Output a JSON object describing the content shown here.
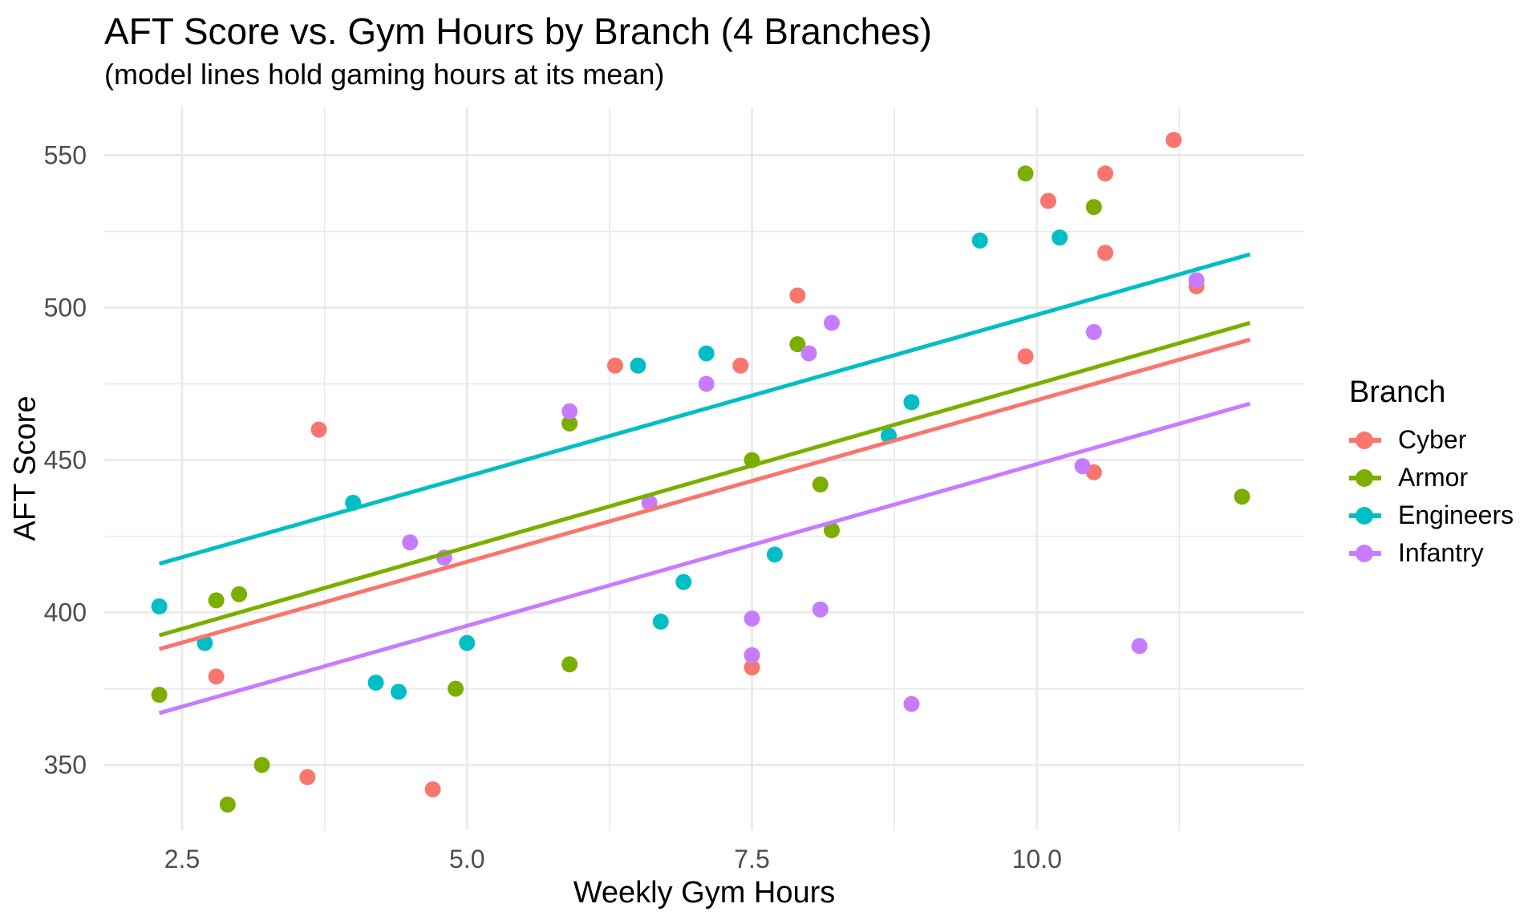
{
  "chart_data": {
    "type": "scatter",
    "title": "AFT Score vs. Gym Hours by Branch (4 Branches)",
    "subtitle": "(model lines hold gaming hours at its mean)",
    "xlabel": "Weekly Gym Hours",
    "ylabel": "AFT Score",
    "x_axis": {
      "ticks": [
        2.5,
        5.0,
        7.5,
        10.0
      ],
      "tick_labels": [
        "2.5",
        "5.0",
        "7.5",
        "10.0"
      ],
      "minor_ticks": [
        3.75,
        6.25,
        8.75,
        11.25
      ],
      "range": [
        1.82,
        12.35
      ]
    },
    "y_axis": {
      "ticks": [
        350,
        400,
        450,
        500,
        550
      ],
      "tick_labels": [
        "350",
        "400",
        "450",
        "500",
        "550"
      ],
      "minor_ticks": [
        375,
        425,
        475,
        525
      ],
      "range": [
        328,
        566
      ]
    },
    "grid": "on",
    "legend": {
      "title": "Branch",
      "position": "right"
    },
    "styles": {
      "grid_color": "#EBEBEB",
      "tick_text_color": "#4D4D4D",
      "text_color": "#000000",
      "background": "#FFFFFF"
    },
    "series": [
      {
        "name": "Cyber",
        "color": "#F8766D",
        "points": [
          [
            2.8,
            379
          ],
          [
            3.6,
            346
          ],
          [
            3.7,
            460
          ],
          [
            4.7,
            342
          ],
          [
            6.3,
            481
          ],
          [
            7.4,
            481
          ],
          [
            7.5,
            382
          ],
          [
            7.9,
            504
          ],
          [
            9.9,
            484
          ],
          [
            10.1,
            535
          ],
          [
            10.5,
            446
          ],
          [
            10.6,
            518
          ],
          [
            10.6,
            544
          ],
          [
            11.2,
            555
          ],
          [
            11.4,
            507
          ]
        ],
        "trend": {
          "x": [
            2.3,
            11.87
          ],
          "y": [
            388,
            489.5
          ]
        }
      },
      {
        "name": "Armor",
        "color": "#7CAE00",
        "points": [
          [
            2.3,
            373
          ],
          [
            2.8,
            404
          ],
          [
            2.9,
            337
          ],
          [
            3.0,
            406
          ],
          [
            3.2,
            350
          ],
          [
            4.9,
            375
          ],
          [
            5.9,
            383
          ],
          [
            5.9,
            462
          ],
          [
            7.5,
            450
          ],
          [
            7.9,
            488
          ],
          [
            8.1,
            442
          ],
          [
            8.2,
            427
          ],
          [
            9.9,
            544
          ],
          [
            10.5,
            533
          ],
          [
            11.8,
            438
          ]
        ],
        "trend": {
          "x": [
            2.3,
            11.87
          ],
          "y": [
            392.5,
            495
          ]
        }
      },
      {
        "name": "Engineers",
        "color": "#00BFC4",
        "points": [
          [
            2.3,
            402
          ],
          [
            2.7,
            390
          ],
          [
            4.0,
            436
          ],
          [
            4.2,
            377
          ],
          [
            4.4,
            374
          ],
          [
            5.0,
            390
          ],
          [
            6.5,
            481
          ],
          [
            6.7,
            397
          ],
          [
            6.9,
            410
          ],
          [
            7.1,
            485
          ],
          [
            7.7,
            419
          ],
          [
            8.7,
            458
          ],
          [
            8.9,
            469
          ],
          [
            9.5,
            522
          ],
          [
            10.2,
            523
          ]
        ],
        "trend": {
          "x": [
            2.3,
            11.87
          ],
          "y": [
            416,
            517.5
          ]
        }
      },
      {
        "name": "Infantry",
        "color": "#C77CFF",
        "points": [
          [
            4.5,
            423
          ],
          [
            4.8,
            418
          ],
          [
            5.9,
            466
          ],
          [
            6.6,
            436
          ],
          [
            7.1,
            475
          ],
          [
            7.5,
            386
          ],
          [
            7.5,
            398
          ],
          [
            8.0,
            485
          ],
          [
            8.1,
            401
          ],
          [
            8.2,
            495
          ],
          [
            8.9,
            370
          ],
          [
            10.4,
            448
          ],
          [
            10.5,
            492
          ],
          [
            10.9,
            389
          ],
          [
            11.4,
            509
          ]
        ],
        "trend": {
          "x": [
            2.3,
            11.87
          ],
          "y": [
            367,
            468.5
          ]
        }
      }
    ]
  }
}
